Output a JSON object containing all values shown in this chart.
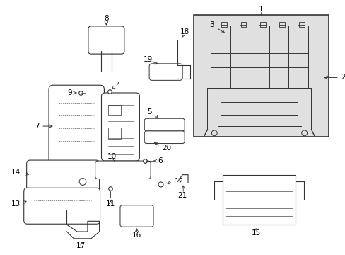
{
  "bg_color": "#ffffff",
  "line_color": "#333333",
  "label_color": "#000000",
  "frame_bg": "#e8e8e8"
}
